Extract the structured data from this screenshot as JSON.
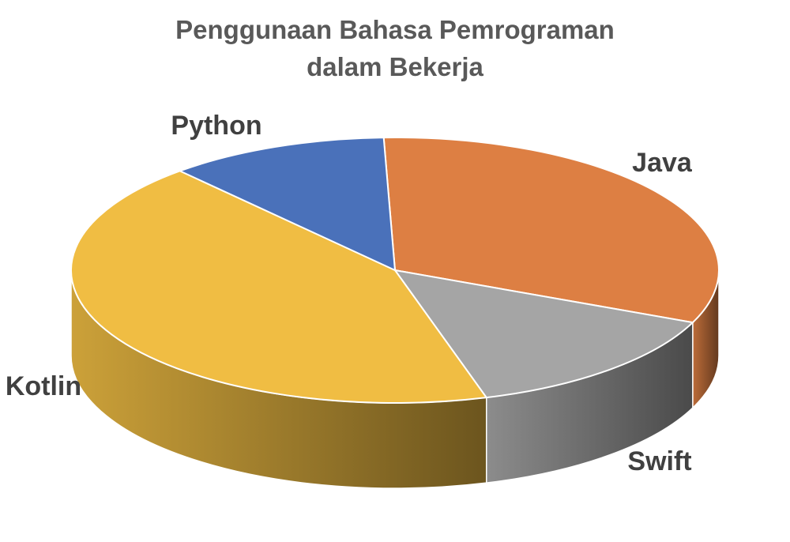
{
  "chart_data": {
    "type": "pie",
    "title": "Penggunaan Bahasa Pemrograman dalam Bekerja",
    "title_lines": [
      "Penggunaan Bahasa Pemrograman",
      "dalam Bekerja"
    ],
    "categories": [
      "Java",
      "Swift",
      "Kotlin",
      "Python"
    ],
    "values": [
      32,
      14,
      43,
      11
    ],
    "colors": [
      "#DD7F43",
      "#A5A5A5",
      "#F0BD43",
      "#4A71BA"
    ],
    "style": "3d",
    "legend": "none",
    "data_labels": "category names outside slices"
  }
}
